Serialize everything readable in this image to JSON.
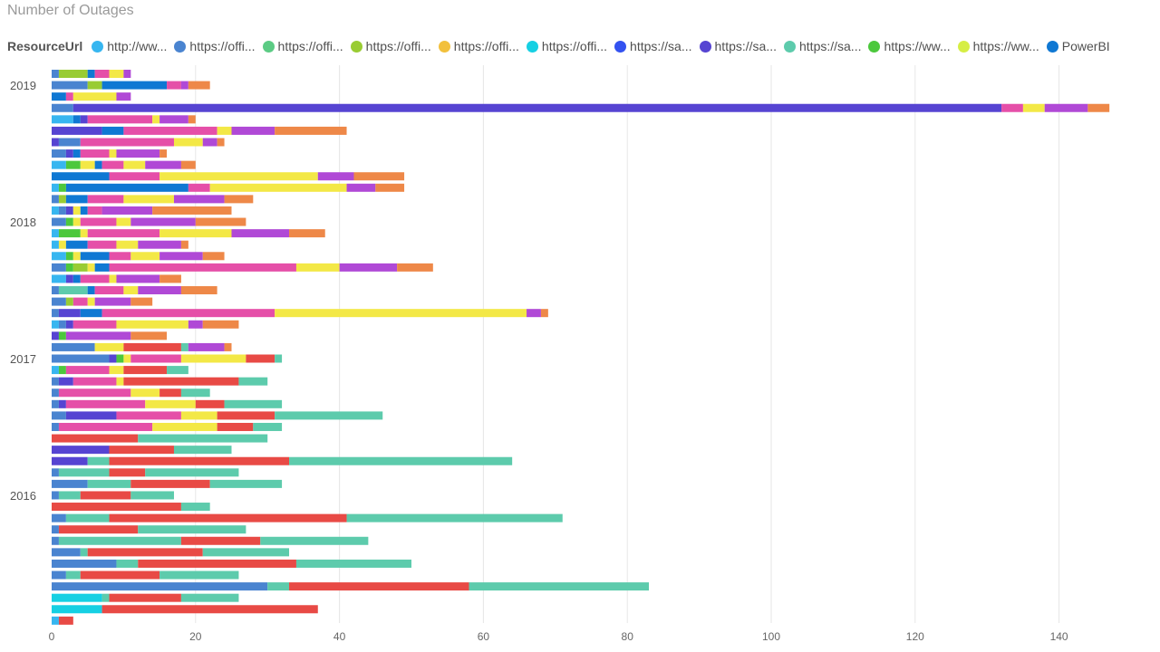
{
  "chart_data": {
    "type": "bar",
    "orientation": "horizontal",
    "stacked": true,
    "title": "Number of Outages",
    "legend_title": "ResourceUrl",
    "legend_position": "top-left",
    "grid": true,
    "xlim": [
      0,
      147
    ],
    "x_ticks": [
      0,
      20,
      40,
      60,
      80,
      100,
      120,
      140
    ],
    "y_year_labels": [
      {
        "label": "2019",
        "row": 1
      },
      {
        "label": "2018",
        "row": 13
      },
      {
        "label": "2017",
        "row": 25
      },
      {
        "label": "2016",
        "row": 37
      }
    ],
    "series": [
      {
        "name": "http://ww...",
        "color": "#37B6F0"
      },
      {
        "name": "https://offi...",
        "color": "#4A84D0"
      },
      {
        "name": "https://offi...",
        "color": "#5CCB84"
      },
      {
        "name": "https://offi...",
        "color": "#99CC33"
      },
      {
        "name": "https://offi...",
        "color": "#F2C03C"
      },
      {
        "name": "https://offi...",
        "color": "#16D0E3"
      },
      {
        "name": "https://sa...",
        "color": "#3352F0"
      },
      {
        "name": "https://sa...",
        "color": "#5644D2"
      },
      {
        "name": "https://sa...",
        "color": "#5DCBAC"
      },
      {
        "name": "https://ww...",
        "color": "#4CC83C"
      },
      {
        "name": "https://ww...",
        "color": "#D6EE44"
      },
      {
        "name": "PowerBI",
        "color": "#0F78D3"
      }
    ],
    "stack_colors": {
      "lightblue": "#37B6F0",
      "blue": "#4A84D0",
      "teal": "#16D0E3",
      "green": "#4CC83C",
      "olive": "#99CC33",
      "indigo": "#5644D2",
      "royal": "#0F78D3",
      "mint": "#5DCBAC",
      "red": "#E84A45",
      "pink": "#E54FA8",
      "yellow": "#F3E846",
      "purple": "#B049D6",
      "orange": "#EE8848",
      "seagreen": "#5ECF95"
    },
    "rows": [
      [
        [
          "blue",
          1
        ],
        [
          "olive",
          4
        ],
        [
          "royal",
          1
        ],
        [
          "pink",
          2
        ],
        [
          "yellow",
          2
        ],
        [
          "purple",
          1
        ]
      ],
      [
        [
          "blue",
          5
        ],
        [
          "olive",
          2
        ],
        [
          "royal",
          9
        ],
        [
          "pink",
          2
        ],
        [
          "purple",
          1
        ],
        [
          "orange",
          3
        ]
      ],
      [
        [
          "royal",
          2
        ],
        [
          "pink",
          1
        ],
        [
          "yellow",
          6
        ],
        [
          "purple",
          2
        ]
      ],
      [
        [
          "blue",
          3
        ],
        [
          "indigo",
          129
        ],
        [
          "pink",
          3
        ],
        [
          "yellow",
          3
        ],
        [
          "purple",
          6
        ],
        [
          "orange",
          3
        ]
      ],
      [
        [
          "lightblue",
          3
        ],
        [
          "royal",
          1
        ],
        [
          "indigo",
          1
        ],
        [
          "pink",
          9
        ],
        [
          "yellow",
          1
        ],
        [
          "purple",
          4
        ],
        [
          "orange",
          1
        ]
      ],
      [
        [
          "indigo",
          7
        ],
        [
          "royal",
          3
        ],
        [
          "pink",
          13
        ],
        [
          "yellow",
          2
        ],
        [
          "purple",
          6
        ],
        [
          "orange",
          10
        ]
      ],
      [
        [
          "indigo",
          1
        ],
        [
          "blue",
          3
        ],
        [
          "pink",
          13
        ],
        [
          "yellow",
          4
        ],
        [
          "purple",
          2
        ],
        [
          "orange",
          1
        ]
      ],
      [
        [
          "blue",
          2
        ],
        [
          "indigo",
          1
        ],
        [
          "royal",
          1
        ],
        [
          "pink",
          4
        ],
        [
          "yellow",
          1
        ],
        [
          "purple",
          6
        ],
        [
          "orange",
          1
        ]
      ],
      [
        [
          "lightblue",
          2
        ],
        [
          "green",
          2
        ],
        [
          "yellow",
          2
        ],
        [
          "royal",
          1
        ],
        [
          "pink",
          3
        ],
        [
          "yellow",
          3
        ],
        [
          "purple",
          5
        ],
        [
          "orange",
          2
        ]
      ],
      [
        [
          "royal",
          8
        ],
        [
          "pink",
          7
        ],
        [
          "yellow",
          22
        ],
        [
          "purple",
          5
        ],
        [
          "orange",
          7
        ]
      ],
      [
        [
          "lightblue",
          1
        ],
        [
          "green",
          1
        ],
        [
          "royal",
          17
        ],
        [
          "pink",
          3
        ],
        [
          "yellow",
          19
        ],
        [
          "purple",
          4
        ],
        [
          "orange",
          4
        ]
      ],
      [
        [
          "blue",
          1
        ],
        [
          "olive",
          1
        ],
        [
          "royal",
          3
        ],
        [
          "pink",
          5
        ],
        [
          "yellow",
          7
        ],
        [
          "purple",
          7
        ],
        [
          "orange",
          4
        ]
      ],
      [
        [
          "lightblue",
          1
        ],
        [
          "blue",
          1
        ],
        [
          "indigo",
          1
        ],
        [
          "yellow",
          1
        ],
        [
          "royal",
          1
        ],
        [
          "pink",
          2
        ],
        [
          "purple",
          7
        ],
        [
          "orange",
          11
        ]
      ],
      [
        [
          "blue",
          2
        ],
        [
          "green",
          1
        ],
        [
          "yellow",
          1
        ],
        [
          "pink",
          5
        ],
        [
          "yellow",
          2
        ],
        [
          "purple",
          9
        ],
        [
          "orange",
          7
        ]
      ],
      [
        [
          "lightblue",
          1
        ],
        [
          "green",
          3
        ],
        [
          "yellow",
          1
        ],
        [
          "pink",
          10
        ],
        [
          "yellow",
          10
        ],
        [
          "purple",
          8
        ],
        [
          "orange",
          5
        ]
      ],
      [
        [
          "lightblue",
          1
        ],
        [
          "yellow",
          1
        ],
        [
          "royal",
          3
        ],
        [
          "pink",
          4
        ],
        [
          "yellow",
          3
        ],
        [
          "purple",
          6
        ],
        [
          "orange",
          1
        ]
      ],
      [
        [
          "lightblue",
          2
        ],
        [
          "green",
          1
        ],
        [
          "yellow",
          1
        ],
        [
          "royal",
          4
        ],
        [
          "pink",
          3
        ],
        [
          "yellow",
          4
        ],
        [
          "purple",
          6
        ],
        [
          "orange",
          3
        ]
      ],
      [
        [
          "blue",
          2
        ],
        [
          "green",
          1
        ],
        [
          "olive",
          2
        ],
        [
          "yellow",
          1
        ],
        [
          "royal",
          2
        ],
        [
          "pink",
          26
        ],
        [
          "yellow",
          6
        ],
        [
          "purple",
          8
        ],
        [
          "orange",
          5
        ]
      ],
      [
        [
          "lightblue",
          2
        ],
        [
          "indigo",
          1
        ],
        [
          "royal",
          1
        ],
        [
          "pink",
          4
        ],
        [
          "yellow",
          1
        ],
        [
          "purple",
          6
        ],
        [
          "orange",
          3
        ]
      ],
      [
        [
          "blue",
          1
        ],
        [
          "mint",
          4
        ],
        [
          "royal",
          1
        ],
        [
          "pink",
          4
        ],
        [
          "yellow",
          2
        ],
        [
          "purple",
          6
        ],
        [
          "orange",
          5
        ]
      ],
      [
        [
          "blue",
          2
        ],
        [
          "olive",
          1
        ],
        [
          "pink",
          2
        ],
        [
          "yellow",
          1
        ],
        [
          "purple",
          5
        ],
        [
          "orange",
          3
        ]
      ],
      [
        [
          "blue",
          1
        ],
        [
          "indigo",
          3
        ],
        [
          "royal",
          3
        ],
        [
          "pink",
          24
        ],
        [
          "yellow",
          35
        ],
        [
          "purple",
          2
        ],
        [
          "orange",
          1
        ]
      ],
      [
        [
          "lightblue",
          1
        ],
        [
          "blue",
          1
        ],
        [
          "indigo",
          1
        ],
        [
          "pink",
          6
        ],
        [
          "yellow",
          10
        ],
        [
          "purple",
          2
        ],
        [
          "orange",
          5
        ]
      ],
      [
        [
          "indigo",
          1
        ],
        [
          "green",
          1
        ],
        [
          "purple",
          9
        ],
        [
          "orange",
          5
        ]
      ],
      [
        [
          "blue",
          6
        ],
        [
          "yellow",
          4
        ],
        [
          "red",
          8
        ],
        [
          "mint",
          1
        ],
        [
          "purple",
          5
        ],
        [
          "orange",
          1
        ]
      ],
      [
        [
          "blue",
          8
        ],
        [
          "indigo",
          1
        ],
        [
          "green",
          1
        ],
        [
          "yellow",
          1
        ],
        [
          "pink",
          7
        ],
        [
          "yellow",
          9
        ],
        [
          "red",
          4
        ],
        [
          "mint",
          1
        ]
      ],
      [
        [
          "lightblue",
          1
        ],
        [
          "green",
          1
        ],
        [
          "pink",
          6
        ],
        [
          "yellow",
          2
        ],
        [
          "red",
          6
        ],
        [
          "mint",
          3
        ]
      ],
      [
        [
          "blue",
          1
        ],
        [
          "indigo",
          2
        ],
        [
          "pink",
          6
        ],
        [
          "yellow",
          1
        ],
        [
          "red",
          16
        ],
        [
          "mint",
          4
        ]
      ],
      [
        [
          "blue",
          1
        ],
        [
          "pink",
          10
        ],
        [
          "yellow",
          4
        ],
        [
          "red",
          3
        ],
        [
          "mint",
          4
        ]
      ],
      [
        [
          "blue",
          1
        ],
        [
          "indigo",
          1
        ],
        [
          "pink",
          11
        ],
        [
          "yellow",
          7
        ],
        [
          "red",
          4
        ],
        [
          "mint",
          8
        ]
      ],
      [
        [
          "blue",
          2
        ],
        [
          "indigo",
          7
        ],
        [
          "pink",
          9
        ],
        [
          "yellow",
          5
        ],
        [
          "red",
          8
        ],
        [
          "mint",
          15
        ]
      ],
      [
        [
          "blue",
          1
        ],
        [
          "pink",
          13
        ],
        [
          "yellow",
          9
        ],
        [
          "red",
          5
        ],
        [
          "mint",
          4
        ]
      ],
      [
        [
          "red",
          12
        ],
        [
          "mint",
          18
        ]
      ],
      [
        [
          "indigo",
          8
        ],
        [
          "red",
          9
        ],
        [
          "mint",
          8
        ]
      ],
      [
        [
          "indigo",
          5
        ],
        [
          "mint",
          3
        ],
        [
          "red",
          25
        ],
        [
          "mint",
          31
        ]
      ],
      [
        [
          "blue",
          1
        ],
        [
          "mint",
          7
        ],
        [
          "red",
          5
        ],
        [
          "mint",
          13
        ]
      ],
      [
        [
          "blue",
          5
        ],
        [
          "mint",
          6
        ],
        [
          "red",
          11
        ],
        [
          "mint",
          10
        ]
      ],
      [
        [
          "blue",
          1
        ],
        [
          "mint",
          3
        ],
        [
          "red",
          7
        ],
        [
          "mint",
          6
        ]
      ],
      [
        [
          "red",
          18
        ],
        [
          "mint",
          4
        ]
      ],
      [
        [
          "blue",
          2
        ],
        [
          "mint",
          6
        ],
        [
          "red",
          33
        ],
        [
          "mint",
          30
        ]
      ],
      [
        [
          "blue",
          1
        ],
        [
          "red",
          11
        ],
        [
          "mint",
          15
        ]
      ],
      [
        [
          "blue",
          1
        ],
        [
          "mint",
          17
        ],
        [
          "red",
          11
        ],
        [
          "mint",
          15
        ]
      ],
      [
        [
          "blue",
          4
        ],
        [
          "mint",
          1
        ],
        [
          "red",
          16
        ],
        [
          "mint",
          12
        ]
      ],
      [
        [
          "blue",
          9
        ],
        [
          "mint",
          3
        ],
        [
          "red",
          22
        ],
        [
          "mint",
          16
        ]
      ],
      [
        [
          "blue",
          2
        ],
        [
          "mint",
          2
        ],
        [
          "red",
          11
        ],
        [
          "mint",
          11
        ]
      ],
      [
        [
          "blue",
          30
        ],
        [
          "mint",
          3
        ],
        [
          "red",
          25
        ],
        [
          "mint",
          25
        ]
      ],
      [
        [
          "teal",
          7
        ],
        [
          "mint",
          1
        ],
        [
          "red",
          10
        ],
        [
          "mint",
          8
        ]
      ],
      [
        [
          "teal",
          7
        ],
        [
          "red",
          30
        ]
      ],
      [
        [
          "lightblue",
          1
        ],
        [
          "red",
          2
        ]
      ]
    ]
  }
}
